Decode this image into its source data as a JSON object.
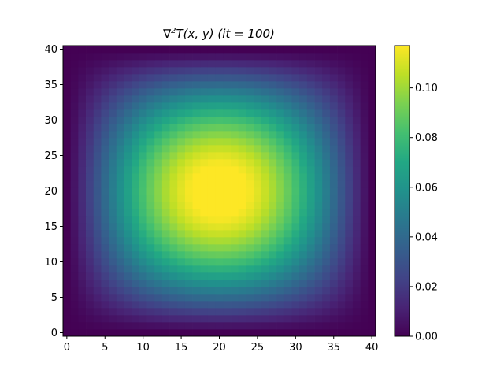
{
  "chart_data": {
    "type": "heatmap",
    "title": "∇²T(x, y) (it = 100)",
    "title_parts": {
      "nabla": "∇",
      "sup": "2",
      "rest": "T(x, y) (it = 100)"
    },
    "xlabel": "",
    "ylabel": "",
    "grid_size": 41,
    "xlim": [
      -0.5,
      40.5
    ],
    "ylim": [
      -0.5,
      40.5
    ],
    "x_ticks": [
      0,
      5,
      10,
      15,
      20,
      25,
      30,
      35,
      40
    ],
    "x_tick_labels": [
      "0",
      "5",
      "10",
      "15",
      "20",
      "25",
      "30",
      "35",
      "40"
    ],
    "y_ticks": [
      0,
      5,
      10,
      15,
      20,
      25,
      30,
      35,
      40
    ],
    "y_tick_labels": [
      "0",
      "5",
      "10",
      "15",
      "20",
      "25",
      "30",
      "35",
      "40"
    ],
    "colormap": "viridis",
    "colorbar": {
      "range": [
        0,
        0.117
      ],
      "ticks": [
        0.0,
        0.02,
        0.04,
        0.06,
        0.08,
        0.1
      ],
      "tick_labels": [
        "0.00",
        "0.02",
        "0.04",
        "0.06",
        "0.08",
        "0.10"
      ]
    },
    "field": {
      "max_value": 0.117,
      "peak_x": 18,
      "peak_y": 23,
      "boundary_value": 0
    },
    "grid": false
  }
}
